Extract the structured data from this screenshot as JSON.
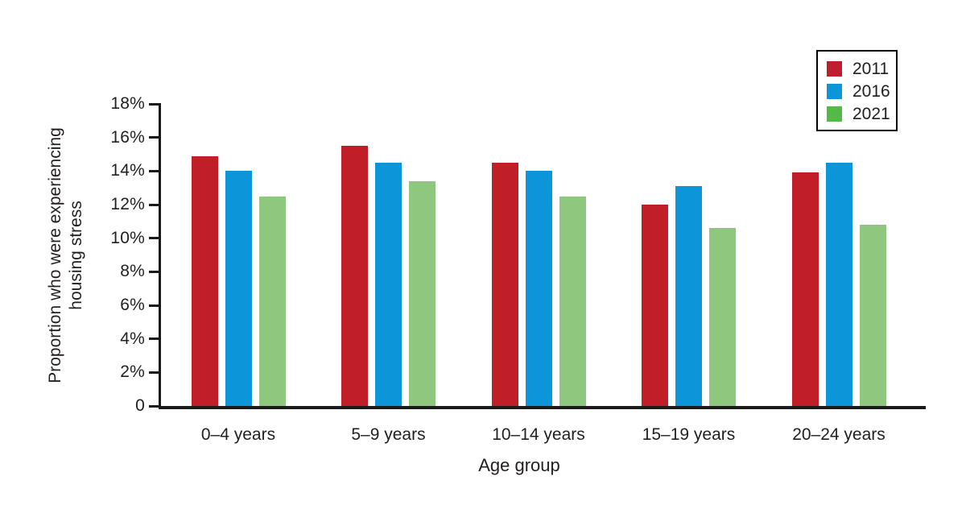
{
  "chart_data": {
    "type": "bar",
    "title": "",
    "xlabel": "Age group",
    "ylabel": "Proportion who were experiencing housing stress",
    "ylabel_lines": [
      "Proportion who were experiencing",
      "housing stress"
    ],
    "categories": [
      "0–4 years",
      "5–9 years",
      "10–14 years",
      "15–19 years",
      "20–24 years"
    ],
    "series": [
      {
        "name": "2011",
        "color": "#c01f27",
        "legend_color": "#be1e2d",
        "values": [
          14.9,
          15.5,
          14.5,
          12.0,
          13.9
        ]
      },
      {
        "name": "2016",
        "color": "#0c95d9",
        "legend_color": "#0c95d9",
        "values": [
          14.0,
          14.5,
          14.0,
          13.1,
          14.5
        ]
      },
      {
        "name": "2021",
        "color": "#8dc87e",
        "legend_color": "#54b948",
        "values": [
          12.5,
          13.4,
          12.5,
          10.6,
          10.8
        ]
      }
    ],
    "ylim": [
      0,
      18
    ],
    "yticks": [
      0,
      2,
      4,
      6,
      8,
      10,
      12,
      14,
      16,
      18
    ],
    "ytick_labels": [
      "0",
      "2%",
      "4%",
      "6%",
      "8%",
      "10%",
      "12%",
      "14%",
      "16%",
      "18%"
    ],
    "unit": "%",
    "grid": false,
    "legend_position": "top-right",
    "colors": {
      "axis": "#1a1a1a",
      "text": "#231f20",
      "background": "#ffffff"
    }
  }
}
